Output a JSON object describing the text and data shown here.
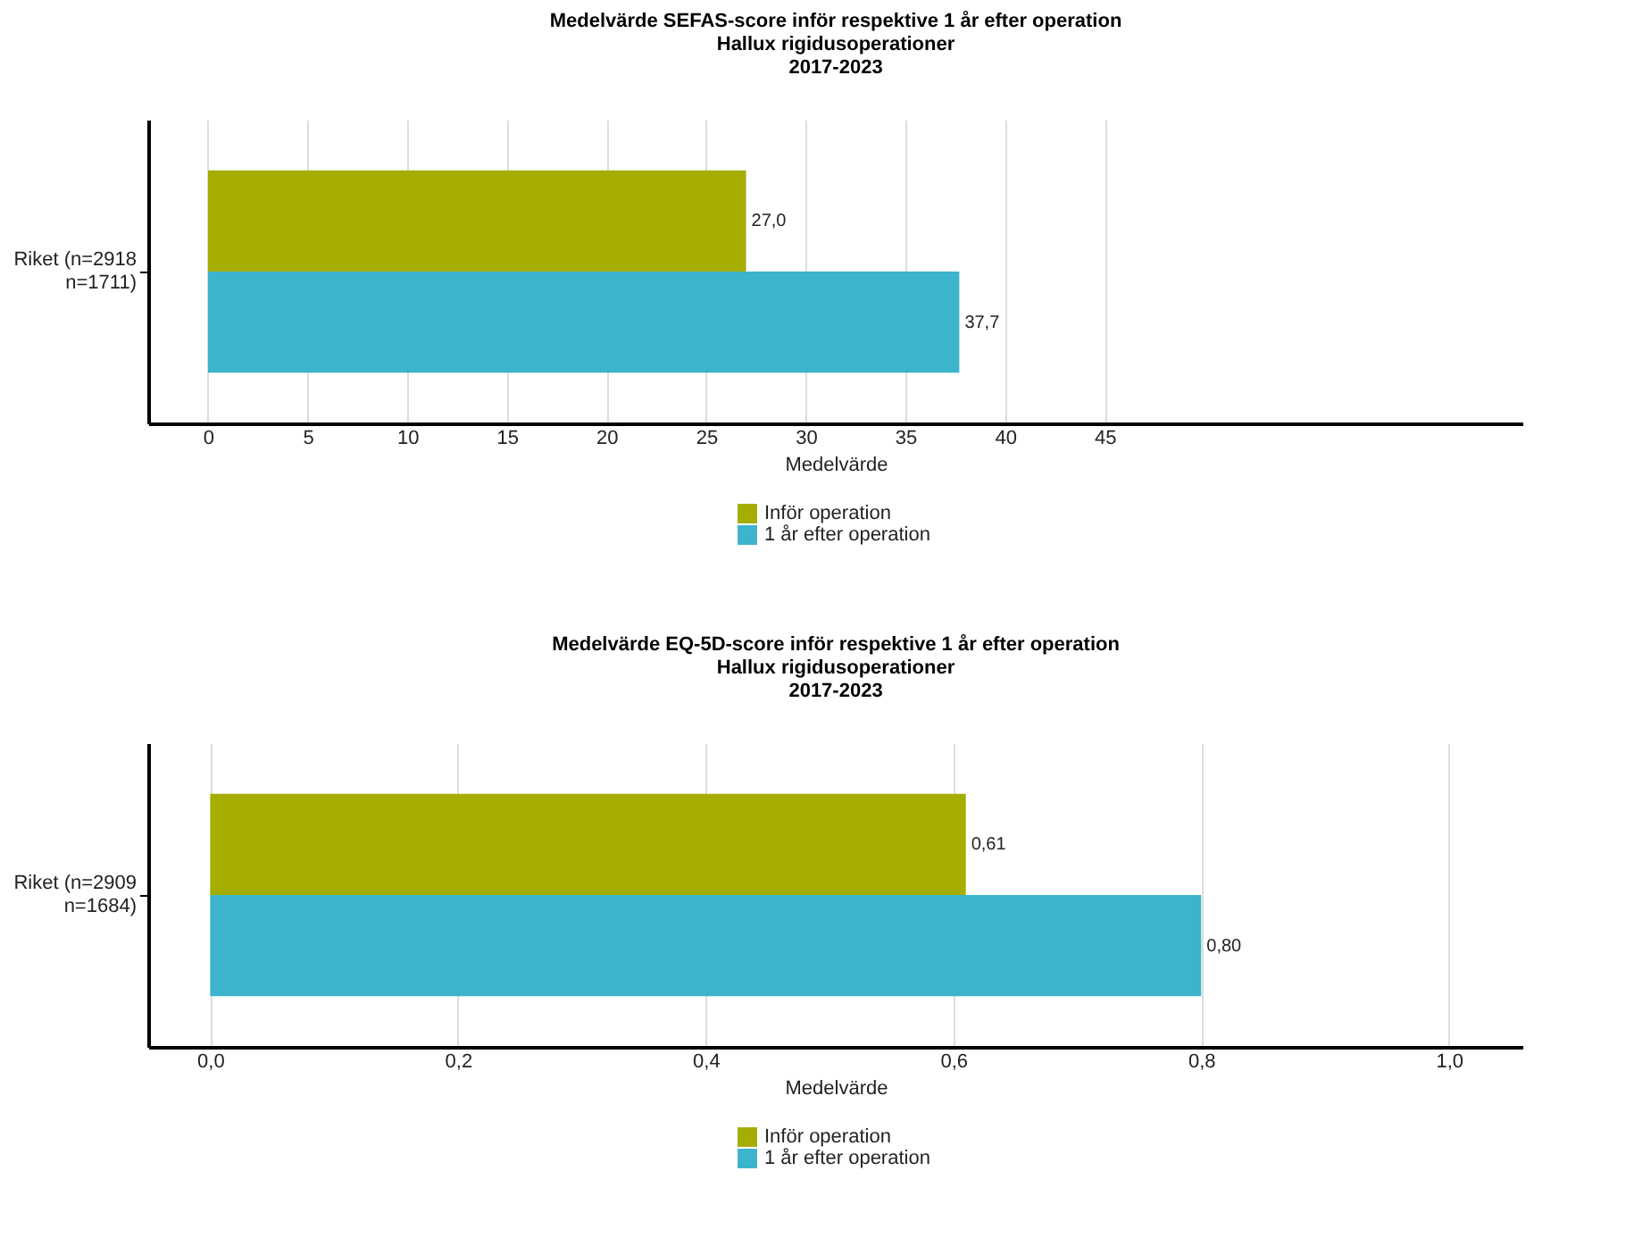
{
  "chart_data": [
    {
      "type": "bar",
      "orientation": "horizontal",
      "title": "Medelvärde SEFAS-score inför respektive 1 år efter operation\nHallux rigidusoperationer\n2017-2023",
      "xlabel": "Medelvärde",
      "categories": [
        "Riket  (n=2918\nn=1711)"
      ],
      "series": [
        {
          "name": "Inför operation",
          "color": "#a5ad00",
          "values": [
            27.0
          ],
          "value_labels": [
            "27,0"
          ]
        },
        {
          "name": "1 år efter operation",
          "color": "#3bb4cc",
          "values": [
            37.7
          ],
          "value_labels": [
            "37,7"
          ]
        }
      ],
      "xlim": [
        -3,
        66
      ],
      "xticks": [
        0,
        5,
        10,
        15,
        20,
        25,
        30,
        35,
        40,
        45
      ],
      "grid": "x",
      "legend": "bottom"
    },
    {
      "type": "bar",
      "orientation": "horizontal",
      "title": "Medelvärde EQ-5D-score inför respektive 1 år efter operation\nHallux rigidusoperationer\n2017-2023",
      "xlabel": "Medelvärde",
      "categories": [
        "Riket  (n=2909\nn=1684)"
      ],
      "series": [
        {
          "name": "Inför operation",
          "color": "#a5ad00",
          "values": [
            0.61
          ],
          "value_labels": [
            "0,61"
          ]
        },
        {
          "name": "1 år efter operation",
          "color": "#3bb4cc",
          "values": [
            0.8
          ],
          "value_labels": [
            "0,80"
          ]
        }
      ],
      "xlim": [
        -0.05,
        1.06
      ],
      "xticks": [
        {
          "value": 0,
          "label": "0,0"
        },
        {
          "value": 0.2,
          "label": "0,2"
        },
        {
          "value": 0.4,
          "label": "0,4"
        },
        {
          "value": 0.6,
          "label": "0,6"
        },
        {
          "value": 0.8,
          "label": "0,8"
        },
        {
          "value": 1.0,
          "label": "1,0"
        }
      ],
      "grid": "x",
      "legend": "bottom"
    }
  ]
}
